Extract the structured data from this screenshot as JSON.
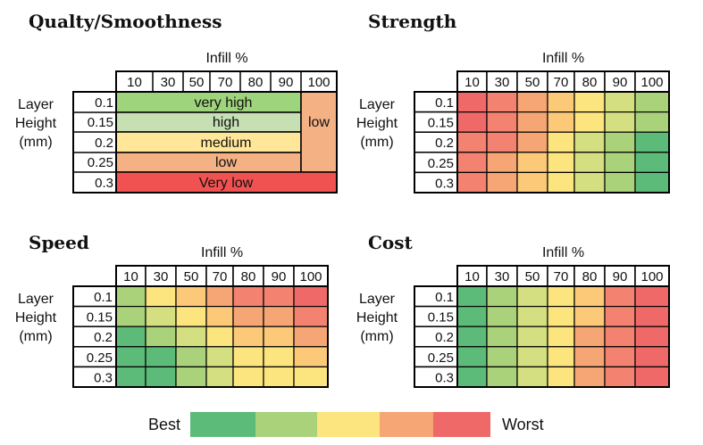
{
  "colors": {
    "c1": "#5dbb79",
    "c2": "#a9d27a",
    "c3": "#d3df80",
    "c4": "#fce47f",
    "c5": "#fbc978",
    "c6": "#f6a574",
    "c7": "#f38270",
    "c8": "#ef6969",
    "quality_very_high": "#9ed47c",
    "quality_high": "#c6e0b4",
    "quality_medium": "#ffe699",
    "quality_low": "#f4b183",
    "quality_very_low": "#f05252"
  },
  "common": {
    "infill_label": "Infill %",
    "infill_values": [
      "10",
      "30",
      "50",
      "70",
      "80",
      "90",
      "100"
    ],
    "layer_label_lines": [
      "Layer",
      "Height",
      "(mm)"
    ],
    "layer_heights": [
      "0.1",
      "0.15",
      "0.2",
      "0.25",
      "0.3"
    ]
  },
  "panels": {
    "quality": {
      "title": "Qualty/Smoothness",
      "bands": [
        "very high",
        "high",
        "medium",
        "low",
        "Very low"
      ],
      "band_colors": [
        "quality_very_high",
        "quality_high",
        "quality_medium",
        "quality_low",
        "quality_very_low"
      ],
      "side_label": "low",
      "side_color": "quality_low"
    },
    "strength": {
      "title": "Strength",
      "grid": [
        [
          "c8",
          "c7",
          "c6",
          "c5",
          "c4",
          "c3",
          "c2"
        ],
        [
          "c8",
          "c7",
          "c6",
          "c5",
          "c4",
          "c3",
          "c2"
        ],
        [
          "c7",
          "c7",
          "c6",
          "c4",
          "c3",
          "c2",
          "c1"
        ],
        [
          "c7",
          "c6",
          "c5",
          "c4",
          "c3",
          "c2",
          "c1"
        ],
        [
          "c7",
          "c6",
          "c5",
          "c4",
          "c3",
          "c2",
          "c1"
        ]
      ]
    },
    "speed": {
      "title": "Speed",
      "grid": [
        [
          "c2",
          "c4",
          "c5",
          "c6",
          "c7",
          "c7",
          "c8"
        ],
        [
          "c2",
          "c3",
          "c4",
          "c5",
          "c6",
          "c6",
          "c7"
        ],
        [
          "c1",
          "c2",
          "c3",
          "c4",
          "c5",
          "c5",
          "c6"
        ],
        [
          "c1",
          "c1",
          "c2",
          "c3",
          "c4",
          "c4",
          "c5"
        ],
        [
          "c1",
          "c1",
          "c2",
          "c3",
          "c4",
          "c4",
          "c4"
        ]
      ]
    },
    "cost": {
      "title": "Cost",
      "grid": [
        [
          "c1",
          "c2",
          "c3",
          "c4",
          "c5",
          "c7",
          "c8"
        ],
        [
          "c1",
          "c2",
          "c3",
          "c4",
          "c5",
          "c7",
          "c8"
        ],
        [
          "c1",
          "c2",
          "c3",
          "c4",
          "c6",
          "c7",
          "c8"
        ],
        [
          "c1",
          "c2",
          "c3",
          "c4",
          "c6",
          "c7",
          "c8"
        ],
        [
          "c1",
          "c2",
          "c3",
          "c4",
          "c6",
          "c7",
          "c8"
        ]
      ]
    }
  },
  "legend": {
    "best_label": "Best",
    "worst_label": "Worst",
    "swatches": [
      "c1",
      "c2",
      "c4",
      "c6",
      "c8"
    ]
  }
}
